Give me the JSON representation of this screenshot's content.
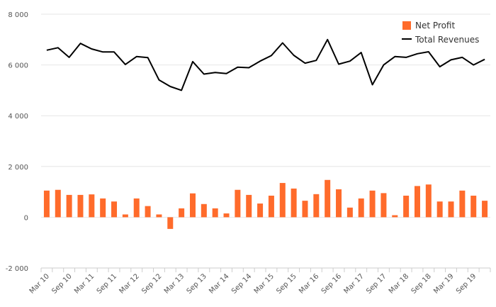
{
  "chart_data": {
    "type": "bar",
    "title": "",
    "xlabel": "",
    "ylabel": "",
    "ylim": [
      -2000,
      8000
    ],
    "yticks": [
      -2000,
      0,
      2000,
      4000,
      6000,
      8000
    ],
    "ytick_labels": [
      "-2 000",
      "0",
      "2 000",
      "4 000",
      "6 000",
      "8 000"
    ],
    "grid": true,
    "legend_position": "top-right",
    "categories": [
      "Q1 2010",
      "Q2 2010",
      "Q3 2010",
      "Q4 2010",
      "Q1 2011",
      "Q2 2011",
      "Q3 2011",
      "Q4 2011",
      "Q1 2012",
      "Q2 2012",
      "Q3 2012",
      "Q4 2012",
      "Q1 2013",
      "Q2 2013",
      "Q3 2013",
      "Q4 2013",
      "Q1 2014",
      "Q2 2014",
      "Q3 2014",
      "Q4 2014",
      "Q1 2015",
      "Q2 2015",
      "Q3 2015",
      "Q4 2015",
      "Q1 2016",
      "Q2 2016",
      "Q3 2016",
      "Q4 2016",
      "Q1 2017",
      "Q2 2017",
      "Q3 2017",
      "Q4 2017",
      "Q1 2018",
      "Q2 2018",
      "Q3 2018",
      "Q4 2018",
      "Q1 2019",
      "Q2 2019",
      "Q3 2019",
      "Q4 2019"
    ],
    "xtick_labels": [
      "Mar 10",
      "Sep 10",
      "Mar 11",
      "Sep 11",
      "Mar 12",
      "Sep 12",
      "Mar 13",
      "Sep 13",
      "Mar 14",
      "Sep 14",
      "Mar 15",
      "Sep 15",
      "Mar 16",
      "Sep 16",
      "Mar 17",
      "Sep 17",
      "Mar 18",
      "Sep 18",
      "Mar 19",
      "Sep 19"
    ],
    "series": [
      {
        "name": "Net Profit",
        "type": "bar",
        "color": "#ff6b2b",
        "values": [
          1050,
          1080,
          880,
          880,
          900,
          740,
          620,
          110,
          740,
          440,
          110,
          -460,
          350,
          940,
          520,
          350,
          150,
          1080,
          880,
          540,
          850,
          1350,
          1130,
          650,
          910,
          1470,
          1100,
          380,
          740,
          1050,
          950,
          80,
          850,
          1230,
          1290,
          620,
          620,
          1050,
          850,
          650
        ]
      },
      {
        "name": "Total Revenues",
        "type": "line",
        "color": "#000000",
        "values": [
          6580,
          6680,
          6300,
          6850,
          6630,
          6510,
          6510,
          6020,
          6330,
          6290,
          5410,
          5150,
          5000,
          6130,
          5640,
          5700,
          5660,
          5910,
          5890,
          6150,
          6370,
          6870,
          6380,
          6070,
          6180,
          7000,
          6030,
          6150,
          6490,
          5220,
          6000,
          6330,
          6300,
          6440,
          6520,
          5930,
          6200,
          6300,
          6000,
          6220
        ]
      }
    ]
  }
}
